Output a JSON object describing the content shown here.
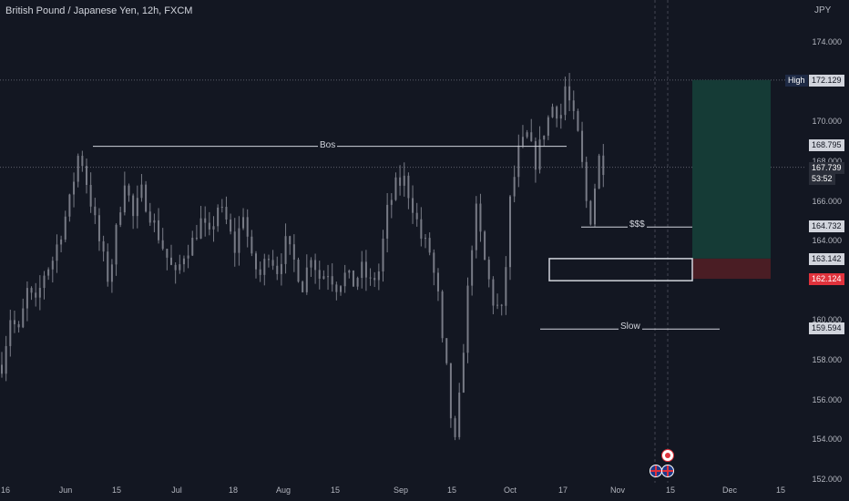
{
  "symbol": {
    "title": "British Pound / Japanese Yen, 12h, FXCM",
    "currency": "JPY"
  },
  "price_axis": {
    "ticks": [
      "174.000",
      "172.000",
      "170.000",
      "168.000",
      "166.000",
      "164.000",
      "162.000",
      "160.000",
      "158.000",
      "156.000",
      "154.000",
      "152.000"
    ]
  },
  "time_axis": {
    "ticks": [
      "16",
      "Jun",
      "15",
      "Jul",
      "18",
      "Aug",
      "15",
      "Sep",
      "15",
      "Oct",
      "17",
      "Nov",
      "15",
      "Dec",
      "15"
    ]
  },
  "price_tags": {
    "high_label": "High",
    "high_value": "172.129",
    "bos_level": "168.795",
    "current_price": "167.739",
    "countdown": "53:52",
    "sss_level": "164.732",
    "entry_level": "163.142",
    "stop_level": "162.124",
    "slow_level": "159.594"
  },
  "annotations": {
    "bos": "Bos",
    "sss": "$$$",
    "slow": "Slow"
  },
  "chart_data": {
    "type": "candlestick",
    "instrument": "GBP/JPY",
    "timeframe": "12h",
    "source": "FXCM",
    "ylim": [
      152,
      175
    ],
    "key_prices": {
      "high": 172.129,
      "bos": 168.795,
      "current": 167.739,
      "sss": 164.732,
      "entry": 163.142,
      "stop": 162.124,
      "slow": 159.594
    },
    "price_path": [
      [
        0,
        157.8
      ],
      [
        2,
        160.2
      ],
      [
        4,
        159.4
      ],
      [
        6,
        161.5
      ],
      [
        8,
        160.8
      ],
      [
        10,
        162.4
      ],
      [
        12,
        163.1
      ],
      [
        14,
        164.5
      ],
      [
        16,
        166.0
      ],
      [
        18,
        168.3
      ],
      [
        19,
        168.0
      ],
      [
        21,
        166.0
      ],
      [
        23,
        164.0
      ],
      [
        25,
        162.2
      ],
      [
        26,
        163.0
      ],
      [
        27,
        164.5
      ],
      [
        29,
        167.2
      ],
      [
        31,
        165.2
      ],
      [
        33,
        166.5
      ],
      [
        35,
        165.4
      ],
      [
        37,
        164.3
      ],
      [
        39,
        163.2
      ],
      [
        41,
        162.2
      ],
      [
        43,
        163.4
      ],
      [
        45,
        164.0
      ],
      [
        47,
        165.0
      ],
      [
        49,
        164.2
      ],
      [
        51,
        165.8
      ],
      [
        53,
        165.0
      ],
      [
        55,
        163.6
      ],
      [
        57,
        165.5
      ],
      [
        59,
        163.0
      ],
      [
        61,
        162.3
      ],
      [
        63,
        163.5
      ],
      [
        65,
        162.6
      ],
      [
        67,
        163.9
      ],
      [
        69,
        163.0
      ],
      [
        71,
        161.8
      ],
      [
        73,
        163.4
      ],
      [
        75,
        162.2
      ],
      [
        77,
        162.5
      ],
      [
        79,
        161.8
      ],
      [
        81,
        162.3
      ],
      [
        83,
        161.9
      ],
      [
        85,
        162.6
      ],
      [
        87,
        161.9
      ],
      [
        89,
        162.5
      ],
      [
        91,
        165.5
      ],
      [
        93,
        166.8
      ],
      [
        95,
        167.1
      ],
      [
        97,
        165.8
      ],
      [
        99,
        164.2
      ],
      [
        101,
        163.5
      ],
      [
        103,
        161.2
      ],
      [
        104,
        158.8
      ],
      [
        105,
        157.5
      ],
      [
        106,
        155.2
      ],
      [
        107,
        153.8
      ],
      [
        108,
        156.0
      ],
      [
        110,
        161.5
      ],
      [
        111,
        163.9
      ],
      [
        112,
        165.5
      ],
      [
        114,
        163.0
      ],
      [
        116,
        161.0
      ],
      [
        118,
        160.4
      ],
      [
        119,
        162.8
      ],
      [
        120,
        166.0
      ],
      [
        122,
        168.5
      ],
      [
        124,
        169.3
      ],
      [
        126,
        168.0
      ],
      [
        128,
        169.6
      ],
      [
        130,
        170.8
      ],
      [
        132,
        170.4
      ],
      [
        133,
        171.8
      ],
      [
        134,
        171.0
      ],
      [
        136,
        169.3
      ],
      [
        137,
        167.8
      ],
      [
        138,
        166.0
      ],
      [
        139,
        165.2
      ],
      [
        140,
        166.8
      ],
      [
        141,
        168.2
      ],
      [
        142,
        167.8
      ]
    ],
    "position": {
      "target": 172.129,
      "entry": 163.142,
      "stop": 162.124
    },
    "colors": {
      "background": "#131722",
      "candle": "#787b86",
      "profit_zone": "#153b36",
      "loss_zone": "#4a1d24",
      "stop_tag": "#e0323c"
    }
  }
}
